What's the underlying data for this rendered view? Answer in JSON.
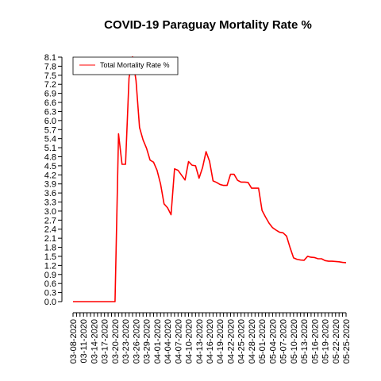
{
  "chart_data": {
    "type": "line",
    "title": "COVID-19 Paraguay Mortality Rate %",
    "xlabel": "",
    "ylabel": "",
    "ylim": [
      0,
      8.1
    ],
    "y_ticks": [
      0.0,
      0.3,
      0.6,
      0.9,
      1.2,
      1.5,
      1.8,
      2.1,
      2.4,
      2.7,
      3.0,
      3.3,
      3.6,
      3.9,
      4.2,
      4.5,
      4.8,
      5.1,
      5.4,
      5.7,
      6.0,
      6.3,
      6.6,
      6.9,
      7.2,
      7.5,
      7.8,
      8.1
    ],
    "y_tick_labels": [
      "0.0",
      "0.3",
      "0.6",
      "0.9",
      "1.2",
      "1.5",
      "1.8",
      "2.1",
      "2.4",
      "2.7",
      "3.0",
      "3.3",
      "3.6",
      "3.9",
      "4.2",
      "4.5",
      "4.8",
      "5.1",
      "5.4",
      "5.7",
      "6.0",
      "6.3",
      "6.6",
      "6.9",
      "7.2",
      "7.5",
      "7.8",
      "8.1"
    ],
    "x_start_label": "03-08-2020",
    "x_count": 79,
    "x_label_every": 3,
    "x_labels": [
      "03-08-2020",
      "03-11-2020",
      "03-14-2020",
      "03-17-2020",
      "03-20-2020",
      "03-23-2020",
      "03-26-2020",
      "03-29-2020",
      "04-01-2020",
      "04-04-2020",
      "04-07-2020",
      "04-10-2020",
      "04-13-2020",
      "04-16-2020",
      "04-19-2020",
      "04-22-2020",
      "04-25-2020",
      "04-28-2020",
      "05-01-2020",
      "05-04-2020",
      "05-07-2020",
      "05-10-2020",
      "05-13-2020",
      "05-16-2020",
      "05-19-2020",
      "05-22-2020",
      "05-25-2020"
    ],
    "legend_placement": "top-left",
    "grid": false,
    "series": [
      {
        "name": "Total Mortality Rate %",
        "color": "#ff0000",
        "values": [
          0,
          0,
          0,
          0,
          0,
          0,
          0,
          0,
          0,
          0,
          0,
          0,
          0,
          5.56,
          4.55,
          4.55,
          7.41,
          8.11,
          7.32,
          5.77,
          5.36,
          5.08,
          4.69,
          4.62,
          4.35,
          3.9,
          3.24,
          3.11,
          2.88,
          4.4,
          4.35,
          4.19,
          4.03,
          4.64,
          4.52,
          4.5,
          4.09,
          4.44,
          4.97,
          4.65,
          4.0,
          3.95,
          3.88,
          3.85,
          3.85,
          4.22,
          4.22,
          4.02,
          3.96,
          3.96,
          3.95,
          3.76,
          3.76,
          3.76,
          3.02,
          2.8,
          2.6,
          2.45,
          2.37,
          2.3,
          2.28,
          2.17,
          1.79,
          1.45,
          1.4,
          1.38,
          1.37,
          1.5,
          1.47,
          1.46,
          1.42,
          1.42,
          1.36,
          1.34,
          1.34,
          1.33,
          1.32,
          1.3,
          1.29
        ]
      }
    ]
  }
}
